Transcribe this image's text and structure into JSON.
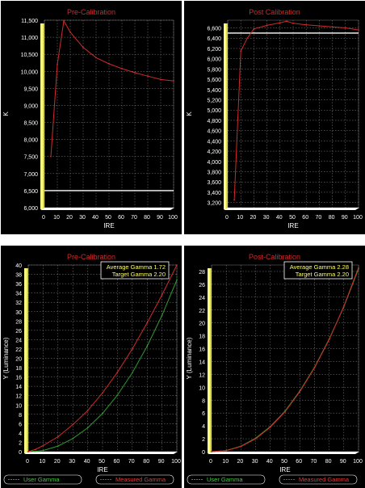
{
  "chart_data": [
    {
      "type": "line",
      "title": "Pre-Calibration",
      "xlabel": "IRE",
      "ylabel": "K",
      "xlim": [
        0,
        100
      ],
      "ylim": [
        6000,
        11500
      ],
      "grid": true,
      "xticks": [
        "0",
        "10",
        "20",
        "30",
        "40",
        "50",
        "60",
        "70",
        "80",
        "90",
        "100"
      ],
      "yticks": [
        "6,000",
        "6,500",
        "7,000",
        "7,500",
        "8,000",
        "8,500",
        "9,000",
        "9,500",
        "10,000",
        "10,500",
        "11,000",
        "11,500"
      ],
      "series": [
        {
          "color": "#d02a2a",
          "x": [
            5,
            10,
            15,
            20,
            30,
            40,
            50,
            60,
            70,
            80,
            90,
            100
          ],
          "y": [
            7500,
            10200,
            11480,
            11150,
            10700,
            10400,
            10220,
            10080,
            9960,
            9860,
            9760,
            9720
          ]
        }
      ],
      "reference": {
        "color": "#ffffff",
        "value": 6500
      }
    },
    {
      "type": "line",
      "title": "Post Calibration",
      "xlabel": "IRE",
      "ylabel": "K",
      "xlim": [
        0,
        100
      ],
      "ylim": [
        3100,
        6750
      ],
      "grid": true,
      "xticks": [
        "0",
        "10",
        "20",
        "30",
        "40",
        "50",
        "60",
        "70",
        "80",
        "90",
        "100"
      ],
      "yticks": [
        "3,200",
        "3,400",
        "3,600",
        "3,800",
        "4,000",
        "4,200",
        "4,400",
        "4,600",
        "4,800",
        "5,000",
        "5,200",
        "5,400",
        "5,600",
        "5,800",
        "6,000",
        "6,200",
        "6,400",
        "6,600"
      ],
      "series": [
        {
          "color": "#d02a2a",
          "x": [
            5,
            10,
            15,
            20,
            30,
            40,
            45,
            50,
            60,
            70,
            80,
            90,
            100
          ],
          "y": [
            3250,
            6150,
            6400,
            6580,
            6650,
            6700,
            6730,
            6690,
            6660,
            6640,
            6620,
            6600,
            6560
          ]
        }
      ],
      "reference": {
        "color": "#ffffff",
        "value": 6500
      }
    },
    {
      "type": "line",
      "title": "Pre-Calibration",
      "xlabel": "IRE",
      "ylabel": "Y (Luminance)",
      "xlim": [
        0,
        100
      ],
      "ylim": [
        0,
        40
      ],
      "grid": true,
      "xticks": [
        "0",
        "10",
        "20",
        "30",
        "40",
        "50",
        "60",
        "70",
        "80",
        "90",
        "100"
      ],
      "yticks": [
        "0",
        "2",
        "4",
        "6",
        "8",
        "10",
        "12",
        "14",
        "16",
        "18",
        "20",
        "22",
        "24",
        "26",
        "28",
        "30",
        "32",
        "34",
        "36",
        "38",
        "40"
      ],
      "annotation": [
        "Average Gamma 1.72",
        "Target Gamma 2.20"
      ],
      "legend": [
        "User Gamma",
        "Measured Gamma"
      ],
      "series": [
        {
          "color": "#2e9a2e",
          "x": [
            0,
            5,
            10,
            20,
            30,
            40,
            50,
            60,
            70,
            80,
            90,
            100
          ],
          "y": [
            0,
            0.08,
            0.25,
            1.2,
            2.8,
            5.1,
            8.2,
            12.1,
            16.9,
            22.6,
            29.2,
            36.8
          ]
        },
        {
          "color": "#d02a2a",
          "x": [
            0,
            5,
            10,
            20,
            30,
            40,
            50,
            60,
            70,
            80,
            90,
            100
          ],
          "y": [
            0,
            0.5,
            1.3,
            3.2,
            5.8,
            8.8,
            12.6,
            17.0,
            22.0,
            27.6,
            33.6,
            40.0
          ]
        }
      ]
    },
    {
      "type": "line",
      "title": "Post-Calibration",
      "xlabel": "IRE",
      "ylabel": "Y (Luminance)",
      "xlim": [
        0,
        100
      ],
      "ylim": [
        0,
        29
      ],
      "grid": true,
      "xticks": [
        "0",
        "10",
        "20",
        "30",
        "40",
        "50",
        "60",
        "70",
        "80",
        "90",
        "100"
      ],
      "yticks": [
        "0",
        "2",
        "4",
        "6",
        "8",
        "10",
        "12",
        "14",
        "16",
        "18",
        "20",
        "22",
        "24",
        "26",
        "28"
      ],
      "annotation": [
        "Average Gamma 2.28",
        "Target Gamma 2.20"
      ],
      "legend": [
        "User Gamma",
        "Measured Gamma"
      ],
      "series": [
        {
          "color": "#2e9a2e",
          "x": [
            0,
            10,
            20,
            30,
            40,
            50,
            60,
            70,
            80,
            90,
            100
          ],
          "y": [
            0,
            0.18,
            0.85,
            2.1,
            3.9,
            6.3,
            9.4,
            13.1,
            17.5,
            22.5,
            28.4
          ]
        },
        {
          "color": "#d02a2a",
          "x": [
            0,
            10,
            20,
            30,
            40,
            50,
            60,
            70,
            80,
            90,
            100
          ],
          "y": [
            0,
            0.16,
            0.8,
            2.0,
            3.8,
            6.2,
            9.3,
            13.0,
            17.4,
            22.6,
            28.6
          ]
        }
      ]
    }
  ]
}
